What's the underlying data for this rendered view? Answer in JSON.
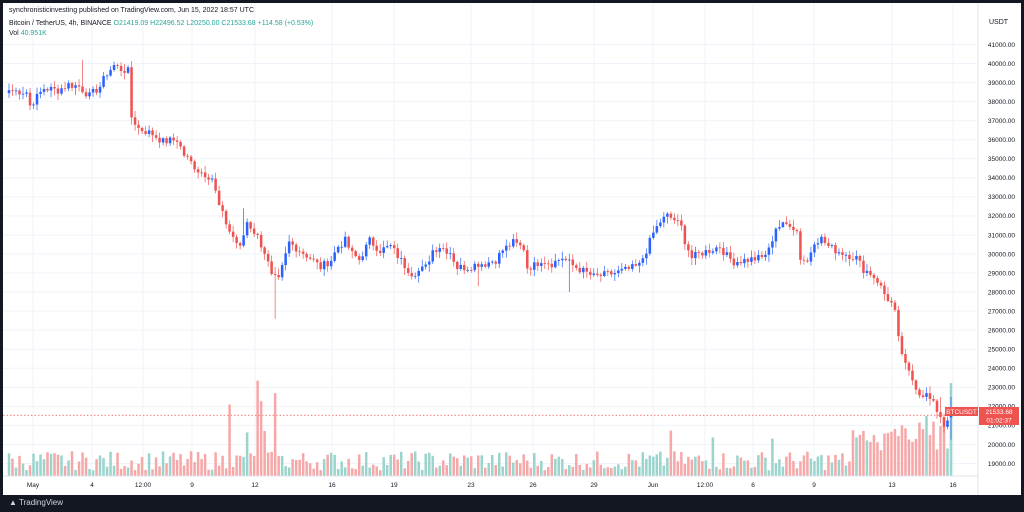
{
  "header": {
    "published": "synchronisticinvesting published on TradingView.com, Jun 15, 2022 18:57 UTC",
    "symbol": "Bitcoin / TetherUS, 4h, BINANCE",
    "open": "O21419.09",
    "high": "H22496.52",
    "low": "L20250.00",
    "close": "C21533.68",
    "change": "+114.58 (+0.53%)",
    "vol_label": "Vol",
    "vol_value": "40.951K"
  },
  "price_axis": {
    "title": "USDT",
    "ticks": [
      "41000.00",
      "40000.00",
      "39000.00",
      "38000.00",
      "37000.00",
      "36000.00",
      "35000.00",
      "34000.00",
      "33000.00",
      "32000.00",
      "31000.00",
      "30000.00",
      "29000.00",
      "28000.00",
      "27000.00",
      "26000.00",
      "25000.00",
      "24000.00",
      "23000.00",
      "22000.00",
      "21000.00",
      "20000.00",
      "19000.00"
    ]
  },
  "price_tag": {
    "symbol": "BTCUSDT",
    "price": "21533.68",
    "countdown": "01:02:37"
  },
  "time_axis": {
    "labels": [
      "May",
      "4",
      "12:00",
      "9",
      "12",
      "16",
      "19",
      "23",
      "26",
      "29",
      "Jun",
      "12:00",
      "6",
      "9",
      "13",
      "16"
    ]
  },
  "footer": {
    "brand": "TradingView"
  },
  "colors": {
    "up": "#2962ff",
    "down": "#ef5350",
    "vol_up": "#9bd4cc",
    "vol_down": "#f6a8a8",
    "price_tag": "#ef5350"
  },
  "chart_data": {
    "type": "candlestick",
    "title": "Bitcoin / TetherUS, 4h, BINANCE",
    "ylabel": "USDT",
    "ylim": [
      18200,
      41800
    ],
    "grid": true,
    "anchors": [
      [
        0,
        38600
      ],
      [
        5,
        38500
      ],
      [
        6,
        37800
      ],
      [
        10,
        38700
      ],
      [
        14,
        38600
      ],
      [
        17,
        38900
      ],
      [
        20,
        38800
      ],
      [
        23,
        38300
      ],
      [
        26,
        38800
      ],
      [
        28,
        39500
      ],
      [
        30,
        39900
      ],
      [
        32,
        39700
      ],
      [
        34,
        39600
      ],
      [
        35,
        37200
      ],
      [
        37,
        36600
      ],
      [
        41,
        36300
      ],
      [
        44,
        35900
      ],
      [
        48,
        36000
      ],
      [
        50,
        35200
      ],
      [
        54,
        34400
      ],
      [
        58,
        34000
      ],
      [
        60,
        32500
      ],
      [
        63,
        31200
      ],
      [
        66,
        30300
      ],
      [
        68,
        31700
      ],
      [
        71,
        30900
      ],
      [
        73,
        30100
      ],
      [
        74,
        29500
      ],
      [
        75,
        28800
      ],
      [
        77,
        28600
      ],
      [
        80,
        30600
      ],
      [
        83,
        30200
      ],
      [
        86,
        29800
      ],
      [
        89,
        29300
      ],
      [
        92,
        29700
      ],
      [
        94,
        30400
      ],
      [
        96,
        30700
      ],
      [
        98,
        30000
      ],
      [
        100,
        29700
      ],
      [
        103,
        30700
      ],
      [
        106,
        30200
      ],
      [
        109,
        30400
      ],
      [
        111,
        29900
      ],
      [
        113,
        29400
      ],
      [
        115,
        29000
      ],
      [
        117,
        29100
      ],
      [
        119,
        29300
      ],
      [
        121,
        30200
      ],
      [
        123,
        30400
      ],
      [
        126,
        30100
      ],
      [
        128,
        29300
      ],
      [
        131,
        29300
      ],
      [
        134,
        29500
      ],
      [
        136,
        29500
      ],
      [
        139,
        29700
      ],
      [
        141,
        30200
      ],
      [
        144,
        30600
      ],
      [
        147,
        30300
      ],
      [
        148,
        29300
      ],
      [
        150,
        29400
      ],
      [
        152,
        29700
      ],
      [
        155,
        29500
      ],
      [
        158,
        29800
      ],
      [
        161,
        29400
      ],
      [
        164,
        29100
      ],
      [
        167,
        28800
      ],
      [
        170,
        28900
      ],
      [
        173,
        29000
      ],
      [
        177,
        29200
      ],
      [
        180,
        29400
      ],
      [
        182,
        30200
      ],
      [
        184,
        31100
      ],
      [
        186,
        31700
      ],
      [
        188,
        32000
      ],
      [
        190,
        31800
      ],
      [
        192,
        31400
      ],
      [
        193,
        30700
      ],
      [
        195,
        29800
      ],
      [
        197,
        30000
      ],
      [
        200,
        30200
      ],
      [
        203,
        30400
      ],
      [
        205,
        29900
      ],
      [
        207,
        29600
      ],
      [
        211,
        29700
      ],
      [
        215,
        29800
      ],
      [
        217,
        30200
      ],
      [
        219,
        31400
      ],
      [
        221,
        31500
      ],
      [
        223,
        31600
      ],
      [
        225,
        31200
      ],
      [
        226,
        29800
      ],
      [
        228,
        29600
      ],
      [
        230,
        30700
      ],
      [
        232,
        30800
      ],
      [
        234,
        30400
      ],
      [
        236,
        30200
      ],
      [
        239,
        30000
      ],
      [
        242,
        29800
      ],
      [
        244,
        29200
      ],
      [
        246,
        29000
      ],
      [
        248,
        28600
      ],
      [
        250,
        27900
      ],
      [
        252,
        27400
      ],
      [
        253,
        26900
      ],
      [
        254,
        25500
      ],
      [
        256,
        24100
      ],
      [
        258,
        23400
      ],
      [
        260,
        22700
      ],
      [
        262,
        22600
      ],
      [
        264,
        22100
      ],
      [
        266,
        21500
      ],
      [
        267,
        21000
      ],
      [
        268,
        21400
      ],
      [
        269,
        21533.68
      ]
    ],
    "highlight_bars": [
      [
        21,
        40200
      ],
      [
        30,
        40100
      ],
      [
        60,
        32800
      ],
      [
        67,
        32400
      ],
      [
        76,
        26600
      ],
      [
        113,
        28900
      ],
      [
        134,
        28300
      ],
      [
        160,
        28000
      ],
      [
        188,
        32200
      ],
      [
        221,
        31700
      ],
      [
        262,
        23000
      ],
      [
        266,
        22500
      ]
    ],
    "volume_spikes": [
      [
        63,
        31500
      ],
      [
        68,
        19200
      ],
      [
        71,
        42000
      ],
      [
        72,
        33000
      ],
      [
        73,
        19800
      ],
      [
        76,
        36500
      ],
      [
        189,
        20000
      ],
      [
        201,
        17000
      ],
      [
        218,
        16500
      ],
      [
        247,
        18000
      ],
      [
        252,
        19500
      ],
      [
        256,
        21000
      ],
      [
        260,
        23500
      ],
      [
        262,
        26500
      ],
      [
        264,
        24000
      ],
      [
        266,
        22000
      ],
      [
        267,
        25500
      ],
      [
        269,
        40951
      ]
    ],
    "last": {
      "open": 21419.09,
      "high": 22496.52,
      "low": 20250.0,
      "close": 21533.68,
      "volume": 40951
    }
  }
}
